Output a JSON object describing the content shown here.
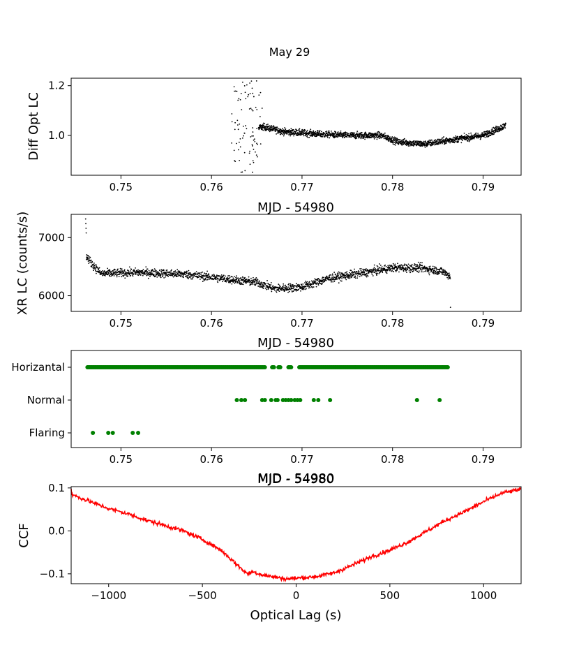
{
  "figure_title": "May 29",
  "chart_data": [
    {
      "id": "optical",
      "type": "scatter",
      "title": "",
      "xlabel": "MJD - 54980",
      "ylabel": "Diff Opt LC",
      "xlim": [
        0.7445,
        0.7942
      ],
      "ylim": [
        0.84,
        1.23
      ],
      "xticks": [
        0.75,
        0.76,
        0.77,
        0.78,
        0.79
      ],
      "xticklabels": [
        "0.75",
        "0.76",
        "0.77",
        "0.78",
        "0.79"
      ],
      "yticks": [
        1.0,
        1.2
      ],
      "yticklabels": [
        "1.0",
        "1.2"
      ],
      "color": "#000000",
      "x_range": [
        0.7622,
        0.7925
      ],
      "trend": [
        [
          0.7622,
          1.0
        ],
        [
          0.7657,
          1.035
        ],
        [
          0.768,
          1.015
        ],
        [
          0.772,
          1.005
        ],
        [
          0.775,
          1.0
        ],
        [
          0.7788,
          1.0
        ],
        [
          0.7805,
          0.975
        ],
        [
          0.7835,
          0.965
        ],
        [
          0.787,
          0.985
        ],
        [
          0.79,
          1.0
        ],
        [
          0.7925,
          1.04
        ]
      ]
    },
    {
      "id": "xray",
      "type": "scatter",
      "title": "",
      "xlabel": "MJD - 54980",
      "ylabel": "XR LC (counts/s)",
      "xlim": [
        0.7445,
        0.7942
      ],
      "ylim": [
        5730,
        7400
      ],
      "xticks": [
        0.75,
        0.76,
        0.77,
        0.78,
        0.79
      ],
      "xticklabels": [
        "0.75",
        "0.76",
        "0.77",
        "0.78",
        "0.79"
      ],
      "yticks": [
        6000,
        7000
      ],
      "yticklabels": [
        "6000",
        "7000"
      ],
      "color": "#000000",
      "x_range": [
        0.7461,
        0.7864
      ],
      "trend": [
        [
          0.7461,
          6700
        ],
        [
          0.7468,
          6550
        ],
        [
          0.7478,
          6380
        ],
        [
          0.752,
          6400
        ],
        [
          0.757,
          6370
        ],
        [
          0.761,
          6300
        ],
        [
          0.765,
          6230
        ],
        [
          0.767,
          6120
        ],
        [
          0.77,
          6150
        ],
        [
          0.773,
          6300
        ],
        [
          0.777,
          6400
        ],
        [
          0.78,
          6480
        ],
        [
          0.783,
          6480
        ],
        [
          0.7855,
          6420
        ],
        [
          0.7864,
          6330
        ]
      ]
    },
    {
      "id": "states",
      "type": "scatter",
      "title": "",
      "xlabel": "MJD - 54980",
      "ylabel": "",
      "xlim": [
        0.7445,
        0.7942
      ],
      "categories": [
        "Horizantal",
        "Normal",
        "Flaring"
      ],
      "xticks": [
        0.75,
        0.76,
        0.77,
        0.78,
        0.79
      ],
      "xticklabels": [
        "0.75",
        "0.76",
        "0.77",
        "0.78",
        "0.79"
      ],
      "color": "#008000",
      "horizantal_ranges": [
        [
          0.7463,
          0.7659
        ],
        [
          0.7667,
          0.7669
        ],
        [
          0.7674,
          0.7676
        ],
        [
          0.7685,
          0.7688
        ],
        [
          0.7697,
          0.7861
        ]
      ],
      "normal_x": [
        0.7628,
        0.7633,
        0.7637,
        0.7656,
        0.7659,
        0.7666,
        0.7671,
        0.7673,
        0.7679,
        0.7682,
        0.7685,
        0.7688,
        0.7692,
        0.7695,
        0.7698,
        0.7713,
        0.7718,
        0.7731,
        0.7827,
        0.7852
      ],
      "flaring_x": [
        0.7469,
        0.7486,
        0.7491,
        0.7513,
        0.7519
      ]
    },
    {
      "id": "ccf",
      "type": "line",
      "title": "MJD - 54980",
      "xlabel": "Optical Lag (s)",
      "ylabel": "CCF",
      "xlim": [
        -1200,
        1200
      ],
      "ylim": [
        -0.123,
        0.103
      ],
      "xticks": [
        -1000,
        -500,
        0,
        500,
        1000
      ],
      "xticklabels": [
        "−1000",
        "−500",
        "0",
        "500",
        "1000"
      ],
      "yticks": [
        0.1,
        0.0,
        -0.1
      ],
      "yticklabels": [
        "0.1",
        "0.0",
        "−0.1"
      ],
      "color": "#ff0000",
      "trend": [
        [
          -1200,
          0.085
        ],
        [
          -1000,
          0.052
        ],
        [
          -900,
          0.04
        ],
        [
          -800,
          0.025
        ],
        [
          -600,
          0.0
        ],
        [
          -500,
          -0.02
        ],
        [
          -400,
          -0.045
        ],
        [
          -300,
          -0.085
        ],
        [
          -260,
          -0.1
        ],
        [
          -230,
          -0.095
        ],
        [
          -200,
          -0.1
        ],
        [
          -150,
          -0.105
        ],
        [
          -50,
          -0.112
        ],
        [
          0,
          -0.11
        ],
        [
          100,
          -0.107
        ],
        [
          200,
          -0.098
        ],
        [
          300,
          -0.08
        ],
        [
          400,
          -0.06
        ],
        [
          500,
          -0.045
        ],
        [
          600,
          -0.025
        ],
        [
          700,
          0.0
        ],
        [
          800,
          0.025
        ],
        [
          900,
          0.045
        ],
        [
          1000,
          0.068
        ],
        [
          1100,
          0.088
        ],
        [
          1200,
          0.097
        ]
      ]
    }
  ]
}
